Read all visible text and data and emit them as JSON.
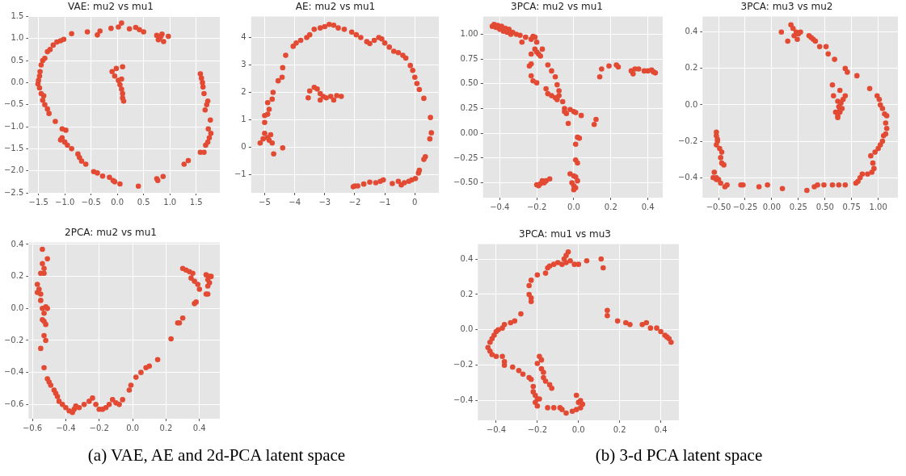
{
  "chart_data": [
    {
      "type": "scatter",
      "title": "VAE: mu2 vs mu1",
      "color": "#e24a33",
      "marker": "circle",
      "grid": true,
      "xlim": [
        -1.69,
        1.95
      ],
      "ylim": [
        -2.5,
        1.5
      ],
      "xticks": [
        {
          "value": -1.5,
          "label": "−1.5"
        },
        {
          "value": -1,
          "label": "−1.0"
        },
        {
          "value": -0.5,
          "label": "−0.5"
        },
        {
          "value": 0,
          "label": "0.0"
        },
        {
          "value": 0.5,
          "label": "0.5"
        },
        {
          "value": 1,
          "label": "1.0"
        },
        {
          "value": 1.5,
          "label": "1.5"
        }
      ],
      "yticks": [
        {
          "value": -2.5,
          "label": "−2.5"
        },
        {
          "value": -2,
          "label": "−2.0"
        },
        {
          "value": -1.5,
          "label": "−1.5"
        },
        {
          "value": -1,
          "label": "−1.0"
        },
        {
          "value": -0.5,
          "label": "−0.5"
        },
        {
          "value": 0,
          "label": "0.0"
        },
        {
          "value": 0.5,
          "label": "0.5"
        },
        {
          "value": 1,
          "label": "1.0"
        },
        {
          "value": 1.5,
          "label": "1.5"
        }
      ],
      "x": [
        -0.87,
        -0.57,
        -0.38,
        -0.33,
        -0.12,
        0.02,
        0.08,
        0.23,
        0.35,
        0.42,
        0.5,
        0.75,
        0.8,
        0.85,
        0.88,
        0.97,
        0.78,
        0.83,
        -1.02,
        -1.08,
        -1.15,
        -1.22,
        -1.28,
        -1.33,
        -1.38,
        -1.42,
        -1.45,
        -1.47,
        -1.48,
        -1.5,
        -1.51,
        -1.48,
        -1.45,
        -1.4,
        -1.42,
        -1.38,
        -1.33,
        -1.3,
        -1.18,
        -1.05,
        -0.98,
        -1.05,
        -1.08,
        -1,
        -0.95,
        -0.87,
        -0.75,
        -0.72,
        -0.68,
        -0.6,
        -0.45,
        -0.38,
        -0.28,
        -0.15,
        -0.08,
        -0.05,
        0.05,
        0.4,
        0.75,
        0.77,
        0.87,
        1.27,
        1.35,
        1.58,
        1.65,
        1.68,
        1.72,
        1.75,
        1.78,
        1.73,
        1.77,
        1.67,
        1.7,
        1.72,
        1.65,
        1.63,
        1.62,
        1.6,
        1.58,
        -0.1,
        -0.02,
        0.1,
        -0.05,
        0.02,
        0.08,
        0.05,
        0.08,
        0.1,
        0.1,
        0.12
      ],
      "values": [
        1.11,
        1.15,
        1.08,
        1.17,
        1.23,
        1.26,
        1.35,
        1.22,
        1.25,
        1.2,
        1.15,
        1.07,
        1,
        1.1,
        0.93,
        1.05,
        0.97,
        1.05,
        0.98,
        0.95,
        0.92,
        0.85,
        0.75,
        0.7,
        0.55,
        0.5,
        0.4,
        0.25,
        0.15,
        0.05,
        -0.03,
        -0.12,
        -0.25,
        -0.3,
        -0.4,
        -0.5,
        -0.6,
        -0.7,
        -0.88,
        -1.05,
        -1.08,
        -1.25,
        -1.3,
        -1.35,
        -1.42,
        -1.5,
        -1.62,
        -1.7,
        -1.78,
        -1.85,
        -2.02,
        -2.05,
        -2.12,
        -2.15,
        -2.22,
        -2.25,
        -2.3,
        -2.35,
        -2.18,
        -2.22,
        -2.13,
        -1.85,
        -1.77,
        -1.58,
        -1.58,
        -1.42,
        -1.35,
        -1.25,
        -1.15,
        -1.05,
        -0.85,
        -0.62,
        -0.5,
        -0.42,
        -0.25,
        -0.1,
        0,
        0.1,
        0.2,
        0.25,
        0.32,
        0.36,
        0.15,
        0.05,
        0.08,
        -0.05,
        -0.15,
        -0.25,
        -0.35,
        -0.42
      ]
    },
    {
      "type": "scatter",
      "title": "AE: mu2 vs mu1",
      "color": "#e24a33",
      "marker": "circle",
      "grid": true,
      "xlim": [
        -5.45,
        0.8
      ],
      "ylim": [
        -1.67,
        4.77
      ],
      "xticks": [
        {
          "value": -5,
          "label": "−5"
        },
        {
          "value": -4,
          "label": "−4"
        },
        {
          "value": -3,
          "label": "−3"
        },
        {
          "value": -2,
          "label": "−2"
        },
        {
          "value": -1,
          "label": "−1"
        },
        {
          "value": 0,
          "label": "0"
        }
      ],
      "yticks": [
        {
          "value": -1,
          "label": "−1"
        },
        {
          "value": 0,
          "label": "0"
        },
        {
          "value": 1,
          "label": "1"
        },
        {
          "value": 2,
          "label": "2"
        },
        {
          "value": 3,
          "label": "3"
        },
        {
          "value": 4,
          "label": "4"
        }
      ],
      "x": [
        -5.15,
        -5.05,
        -5,
        -4.9,
        -4.8,
        -4.85,
        -4.75,
        -4.7,
        -4.4,
        -5,
        -5,
        -4.9,
        -4.85,
        -4.9,
        -4.75,
        -4.72,
        -4.55,
        -4.42,
        -4.4,
        -4.3,
        -4.05,
        -3.95,
        -3.8,
        -3.6,
        -3.5,
        -3.35,
        -3.15,
        -3,
        -2.85,
        -2.7,
        -2.55,
        -2.35,
        -2.1,
        -1.95,
        -1.8,
        -1.6,
        -1.5,
        -1.35,
        -1.2,
        -1.1,
        -1,
        -0.85,
        -0.7,
        -0.55,
        -0.4,
        -0.3,
        -0.15,
        -0.07,
        0,
        0.07,
        0.15,
        0.3,
        0.52,
        0.55,
        0.5,
        0.35,
        0.3,
        0.15,
        0.12,
        0.02,
        -0.1,
        -0.2,
        -0.35,
        -0.45,
        -0.55,
        -0.75,
        -1.05,
        -1.15,
        -1.3,
        -1.5,
        -1.7,
        -1.9,
        -2.05,
        -2,
        -3.55,
        -3.5,
        -3.35,
        -3.25,
        -3.15,
        -3.05,
        -3.15,
        -2.95,
        -2.8,
        -2.7,
        -2.6,
        -2.45
      ],
      "values": [
        0.15,
        0.3,
        0.5,
        0.35,
        0.45,
        0.25,
        0.15,
        -0.25,
        -0.03,
        0.9,
        1.15,
        1.2,
        1.38,
        1.62,
        1.75,
        2,
        2.42,
        2.55,
        2.9,
        3.35,
        3.68,
        3.8,
        3.9,
        4,
        4.1,
        4.3,
        4.35,
        4.4,
        4.48,
        4.45,
        4.35,
        4.3,
        4.2,
        4.1,
        4,
        3.85,
        3.78,
        3.9,
        4,
        3.95,
        3.8,
        3.65,
        3.5,
        3.45,
        3.35,
        3.25,
        2.98,
        2.8,
        2.55,
        2.32,
        2.1,
        1.78,
        1.08,
        0.52,
        0.3,
        -0.35,
        -0.45,
        -0.85,
        -0.95,
        -1.15,
        -1.2,
        -1.25,
        -1.3,
        -1.38,
        -1.25,
        -1.33,
        -1.2,
        -1.25,
        -1.3,
        -1.28,
        -1.35,
        -1.42,
        -1.45,
        -1.42,
        1.8,
        2.05,
        2.18,
        2.12,
        1.95,
        1.85,
        1.72,
        1.8,
        1.85,
        1.72,
        1.88,
        1.85
      ]
    },
    {
      "type": "scatter",
      "title": "3PCA: mu2 vs mu1",
      "color": "#e24a33",
      "marker": "circle",
      "grid": true,
      "xlim": [
        -0.49,
        0.48
      ],
      "ylim": [
        -0.65,
        1.18
      ],
      "xticks": [
        {
          "value": -0.4,
          "label": "−0.4"
        },
        {
          "value": -0.2,
          "label": "−0.2"
        },
        {
          "value": 0,
          "label": "0.0"
        },
        {
          "value": 0.2,
          "label": "0.2"
        },
        {
          "value": 0.4,
          "label": "0.4"
        }
      ],
      "yticks": [
        {
          "value": -0.5,
          "label": "−0.50"
        },
        {
          "value": -0.25,
          "label": "−0.25"
        },
        {
          "value": 0,
          "label": "0.00"
        },
        {
          "value": 0.25,
          "label": "0.25"
        },
        {
          "value": 0.5,
          "label": "0.50"
        },
        {
          "value": 0.75,
          "label": "0.75"
        },
        {
          "value": 1,
          "label": "1.00"
        }
      ],
      "x": [
        -0.44,
        -0.43,
        -0.42,
        -0.41,
        -0.4,
        -0.39,
        -0.38,
        -0.37,
        -0.36,
        -0.35,
        -0.34,
        -0.33,
        -0.31,
        -0.29,
        -0.28,
        -0.26,
        -0.23,
        -0.22,
        -0.21,
        -0.2,
        -0.21,
        -0.2,
        -0.19,
        -0.18,
        -0.17,
        -0.23,
        -0.23,
        -0.24,
        -0.23,
        -0.22,
        -0.2,
        -0.14,
        -0.12,
        -0.1,
        -0.09,
        -0.08,
        -0.15,
        -0.14,
        -0.12,
        -0.1,
        -0.09,
        -0.08,
        -0.06,
        -0.05,
        -0.04,
        -0.05,
        -0.02,
        0,
        0.01,
        0.04,
        -0.03,
        0.12,
        0.11,
        0.02,
        0.03,
        0.01,
        0.01,
        0.02,
        -0.02,
        0,
        0.01,
        0.02,
        -0.01,
        0,
        0.01,
        0,
        -0.2,
        -0.19,
        -0.18,
        -0.17,
        -0.16,
        -0.15,
        -0.13,
        0.14,
        0.15,
        0.19,
        0.23,
        0.24,
        0.31,
        0.32,
        0.33,
        0.35,
        0.38,
        0.4,
        0.42,
        0.43,
        0.44
      ],
      "values": [
        1.08,
        1.1,
        1.07,
        1.09,
        1.05,
        1.08,
        1.03,
        1.06,
        1.02,
        1.05,
        1,
        1.02,
        1,
        0.99,
        0.92,
        0.97,
        0.95,
        0.98,
        0.97,
        0.92,
        0.85,
        0.82,
        0.8,
        0.78,
        0.85,
        0.8,
        0.7,
        0.68,
        0.58,
        0.53,
        0.51,
        0.69,
        0.63,
        0.57,
        0.49,
        0.43,
        0.45,
        0.4,
        0.38,
        0.36,
        0.34,
        0.38,
        0.32,
        0.25,
        0.2,
        0.22,
        0.24,
        0.22,
        0.21,
        0.18,
        0.1,
        0.14,
        0.09,
        -0.04,
        -0.05,
        -0.11,
        -0.27,
        -0.3,
        -0.41,
        -0.43,
        -0.44,
        -0.48,
        -0.5,
        -0.53,
        -0.55,
        -0.57,
        -0.52,
        -0.53,
        -0.51,
        -0.48,
        -0.5,
        -0.48,
        -0.46,
        0.57,
        0.65,
        0.68,
        0.69,
        0.67,
        0.63,
        0.6,
        0.65,
        0.65,
        0.63,
        0.63,
        0.64,
        0.62,
        0.61
      ]
    },
    {
      "type": "scatter",
      "title": "3PCA: mu3 vs mu2",
      "color": "#e24a33",
      "marker": "circle",
      "grid": true,
      "xlim": [
        -0.65,
        1.185
      ],
      "ylim": [
        -0.51,
        0.486
      ],
      "xticks": [
        {
          "value": -0.5,
          "label": "−0.50"
        },
        {
          "value": -0.25,
          "label": "−0.25"
        },
        {
          "value": 0,
          "label": "0.00"
        },
        {
          "value": 0.25,
          "label": "0.25"
        },
        {
          "value": 0.5,
          "label": "0.50"
        },
        {
          "value": 0.75,
          "label": "0.75"
        },
        {
          "value": 1,
          "label": "1.00"
        }
      ],
      "yticks": [
        {
          "value": -0.4,
          "label": "−0.4"
        },
        {
          "value": -0.2,
          "label": "−0.2"
        },
        {
          "value": 0,
          "label": "0.0"
        },
        {
          "value": 0.2,
          "label": "0.2"
        },
        {
          "value": 0.4,
          "label": "0.4"
        }
      ],
      "x": [
        0.09,
        0.15,
        0.18,
        0.2,
        0.21,
        0.23,
        0.24,
        0.25,
        0.27,
        0.35,
        0.37,
        0.39,
        0.41,
        0.45,
        0.51,
        0.53,
        0.59,
        0.69,
        0.71,
        0.8,
        0.92,
        0.99,
        1.01,
        1.02,
        1.04,
        1.06,
        1.08,
        1.07,
        1.08,
        1.07,
        1.05,
        1.04,
        1.02,
        1,
        0.97,
        0.93,
        0.95,
        0.96,
        0.94,
        0.9,
        0.85,
        0.83,
        0.81,
        0.79,
        0.69,
        0.63,
        0.57,
        0.49,
        0.43,
        0.4,
        0.33,
        0.1,
        -0.04,
        -0.12,
        -0.27,
        -0.29,
        -0.42,
        -0.44,
        -0.48,
        -0.5,
        -0.52,
        -0.55,
        -0.54,
        -0.52,
        -0.45,
        -0.47,
        -0.48,
        -0.47,
        -0.49,
        -0.52,
        -0.51,
        -0.52,
        -0.52,
        -0.51,
        0.57,
        0.64,
        0.58,
        0.69,
        0.67,
        0.62,
        0.65,
        0.63,
        0.66,
        0.6,
        0.64,
        0.62,
        0.62,
        0.64
      ],
      "values": [
        0.4,
        0.35,
        0.44,
        0.42,
        0.38,
        0.4,
        0.36,
        0.39,
        0.4,
        0.38,
        0.37,
        0.36,
        0.35,
        0.32,
        0.32,
        0.28,
        0.25,
        0.2,
        0.18,
        0.16,
        0.09,
        0.05,
        0.03,
        0,
        -0.02,
        -0.05,
        -0.06,
        -0.1,
        -0.13,
        -0.16,
        -0.17,
        -0.2,
        -0.22,
        -0.24,
        -0.26,
        -0.28,
        -0.32,
        -0.35,
        -0.37,
        -0.38,
        -0.38,
        -0.4,
        -0.42,
        -0.43,
        -0.44,
        -0.44,
        -0.44,
        -0.44,
        -0.44,
        -0.45,
        -0.47,
        -0.46,
        -0.44,
        -0.45,
        -0.44,
        -0.44,
        -0.44,
        -0.45,
        -0.43,
        -0.41,
        -0.4,
        -0.4,
        -0.37,
        -0.41,
        -0.33,
        -0.32,
        -0.29,
        -0.26,
        -0.24,
        -0.22,
        -0.19,
        -0.17,
        -0.15,
        -0.2,
        0.11,
        0.08,
        0.05,
        0.05,
        0.03,
        0.02,
        0.01,
        -0.01,
        -0.02,
        -0.04,
        -0.04,
        -0.06,
        -0.07,
        -0.03
      ]
    },
    {
      "type": "scatter",
      "title": "2PCA: mu2 vs mu1",
      "color": "#e24a33",
      "marker": "circle",
      "grid": true,
      "annotations": [
        "(a) VAE, AE and 2d-PCA latent space"
      ],
      "xlim": [
        -0.623,
        0.522
      ],
      "ylim": [
        -0.689,
        0.413
      ],
      "xticks": [
        {
          "value": -0.6,
          "label": "−0.6"
        },
        {
          "value": -0.4,
          "label": "−0.4"
        },
        {
          "value": -0.2,
          "label": "−0.2"
        },
        {
          "value": 0,
          "label": "0.0"
        },
        {
          "value": 0.2,
          "label": "0.2"
        },
        {
          "value": 0.4,
          "label": "0.4"
        }
      ],
      "yticks": [
        {
          "value": -0.6,
          "label": "−0.6"
        },
        {
          "value": -0.4,
          "label": "−0.4"
        },
        {
          "value": -0.2,
          "label": "−0.2"
        },
        {
          "value": 0,
          "label": "0.0"
        },
        {
          "value": 0.2,
          "label": "0.2"
        },
        {
          "value": 0.4,
          "label": "0.4"
        }
      ],
      "x": [
        -0.54,
        -0.51,
        -0.54,
        -0.53,
        -0.55,
        -0.53,
        -0.57,
        -0.56,
        -0.57,
        -0.55,
        -0.55,
        -0.54,
        -0.52,
        -0.51,
        -0.53,
        -0.54,
        -0.53,
        -0.52,
        -0.53,
        -0.52,
        -0.55,
        -0.53,
        -0.51,
        -0.5,
        -0.49,
        -0.47,
        -0.46,
        -0.45,
        -0.44,
        -0.42,
        -0.4,
        -0.38,
        -0.36,
        -0.35,
        -0.34,
        -0.32,
        -0.29,
        -0.26,
        -0.24,
        -0.22,
        -0.2,
        -0.18,
        -0.16,
        -0.14,
        -0.12,
        -0.1,
        -0.08,
        -0.06,
        -0.02,
        -0.01,
        0.02,
        0.05,
        0.08,
        0.1,
        0.15,
        0.23,
        0.27,
        0.28,
        0.3,
        0.37,
        0.38,
        0.44,
        0.45,
        0.3,
        0.32,
        0.34,
        0.36,
        0.35,
        0.37,
        0.39,
        0.4,
        0.44,
        0.45,
        0.46,
        0.47,
        0.45,
        0.46
      ],
      "values": [
        0.37,
        0.31,
        0.28,
        0.25,
        0.22,
        0.22,
        0.15,
        0.12,
        0.1,
        0.09,
        0.05,
        0,
        0.01,
        0,
        -0.03,
        -0.07,
        -0.08,
        -0.1,
        -0.17,
        -0.2,
        -0.25,
        -0.37,
        -0.44,
        -0.46,
        -0.48,
        -0.51,
        -0.53,
        -0.55,
        -0.58,
        -0.6,
        -0.62,
        -0.64,
        -0.65,
        -0.63,
        -0.61,
        -0.62,
        -0.6,
        -0.58,
        -0.56,
        -0.6,
        -0.63,
        -0.63,
        -0.62,
        -0.6,
        -0.57,
        -0.59,
        -0.6,
        -0.57,
        -0.51,
        -0.48,
        -0.43,
        -0.4,
        -0.37,
        -0.36,
        -0.32,
        -0.19,
        -0.09,
        -0.09,
        -0.06,
        0.03,
        0.04,
        0.09,
        0.09,
        0.25,
        0.24,
        0.23,
        0.22,
        0.19,
        0.17,
        0.15,
        0.12,
        0.21,
        0.18,
        0.2,
        0.2,
        0.14,
        0.16
      ]
    },
    {
      "type": "scatter",
      "title": "3PCA: mu1 vs mu3",
      "color": "#e24a33",
      "marker": "circle",
      "grid": true,
      "annotations": [
        "(b) 3-d PCA latent space"
      ],
      "xlim": [
        -0.489,
        0.488
      ],
      "ylim": [
        -0.511,
        0.485
      ],
      "xticks": [
        {
          "value": -0.4,
          "label": "−0.4"
        },
        {
          "value": -0.2,
          "label": "−0.2"
        },
        {
          "value": 0,
          "label": "0.0"
        },
        {
          "value": 0.2,
          "label": "0.2"
        },
        {
          "value": 0.4,
          "label": "0.4"
        }
      ],
      "yticks": [
        {
          "value": -0.4,
          "label": "−0.4"
        },
        {
          "value": -0.2,
          "label": "−0.2"
        },
        {
          "value": 0,
          "label": "0.0"
        },
        {
          "value": 0.2,
          "label": "0.2"
        },
        {
          "value": 0.4,
          "label": "0.4"
        }
      ],
      "x": [
        -0.05,
        -0.06,
        -0.07,
        -0.06,
        -0.04,
        -0.08,
        -0.1,
        -0.12,
        -0.14,
        -0.15,
        -0.16,
        -0.2,
        -0.23,
        -0.24,
        -0.24,
        -0.23,
        -0.23,
        -0.28,
        -0.31,
        -0.33,
        -0.36,
        -0.37,
        -0.39,
        -0.4,
        -0.41,
        -0.42,
        -0.43,
        -0.44,
        -0.43,
        -0.42,
        -0.4,
        -0.37,
        -0.36,
        -0.36,
        -0.32,
        -0.29,
        -0.27,
        -0.24,
        -0.23,
        -0.22,
        -0.22,
        -0.21,
        -0.2,
        -0.19,
        -0.21,
        -0.2,
        -0.15,
        -0.12,
        -0.09,
        -0.08,
        -0.06,
        -0.03,
        -0.01,
        0.01,
        0.02,
        0.01,
        -0.01,
        0,
        -0.02,
        0,
        0.04,
        0.11,
        0.12,
        0.14,
        0.14,
        0.19,
        0.23,
        0.25,
        0.31,
        0.33,
        0.35,
        0.38,
        0.4,
        0.42,
        0.43,
        0.44,
        0.45,
        -0.19,
        -0.18,
        -0.2,
        -0.18,
        -0.17,
        -0.17,
        -0.16,
        -0.14,
        -0.13
      ],
      "values": [
        0.44,
        0.42,
        0.4,
        0.38,
        0.39,
        0.37,
        0.38,
        0.37,
        0.36,
        0.35,
        0.32,
        0.31,
        0.28,
        0.25,
        0.2,
        0.18,
        0.16,
        0.09,
        0.05,
        0.04,
        0.03,
        0.01,
        0,
        -0.01,
        -0.03,
        -0.05,
        -0.07,
        -0.1,
        -0.12,
        -0.14,
        -0.15,
        -0.15,
        -0.18,
        -0.2,
        -0.21,
        -0.23,
        -0.25,
        -0.27,
        -0.28,
        -0.32,
        -0.35,
        -0.37,
        -0.39,
        -0.39,
        -0.41,
        -0.43,
        -0.44,
        -0.44,
        -0.44,
        -0.45,
        -0.47,
        -0.46,
        -0.45,
        -0.44,
        -0.42,
        -0.4,
        -0.37,
        -0.41,
        0.37,
        0.37,
        0.39,
        0.4,
        0.35,
        0.11,
        0.08,
        0.05,
        0.04,
        0.03,
        0.03,
        0.04,
        0.01,
        0.01,
        -0.01,
        -0.03,
        -0.04,
        -0.05,
        -0.07,
        -0.15,
        -0.17,
        -0.19,
        -0.22,
        -0.24,
        -0.27,
        -0.29,
        -0.31,
        -0.33
      ]
    }
  ]
}
